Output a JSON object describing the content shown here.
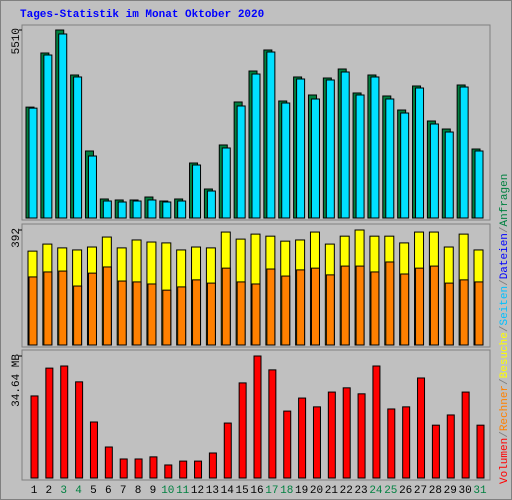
{
  "chart_data": [
    {
      "type": "bar",
      "title": "Tages-Statistik im Monat Oktober 2020",
      "ylim": [
        0,
        5510
      ],
      "yticks": [
        5510
      ],
      "legend_separator": "/",
      "legend": [
        {
          "label": "Volumen",
          "color": "#ff0000"
        },
        {
          "label": "Rechner",
          "color": "#ff8000"
        },
        {
          "label": "Besuche",
          "color": "#ffff00"
        },
        {
          "label": "Seiten",
          "color": "#00c0ff"
        },
        {
          "label": "Dateien",
          "color": "#0000ff"
        },
        {
          "label": "Anfragen",
          "color": "#008040"
        }
      ],
      "series": [
        {
          "color": "#008040",
          "values": [
            3250,
            4836,
            5510,
            4191,
            1964,
            557,
            528,
            528,
            615,
            498,
            557,
            1612,
            850,
            2140,
            3400,
            4308,
            4924,
            3429,
            4133,
            3605,
            4103,
            4367,
            3664,
            4191,
            3576,
            3165,
            3869,
            2843,
            2608,
            3898,
            2022
          ]
        },
        {
          "color": "#00e0ff",
          "values": [
            3220,
            4777,
            5393,
            4133,
            1817,
            498,
            469,
            498,
            528,
            469,
            498,
            1553,
            791,
            2052,
            3283,
            4220,
            4865,
            3370,
            4074,
            3488,
            4045,
            4279,
            3605,
            4133,
            3488,
            3077,
            3810,
            2755,
            2520,
            3839,
            1964
          ]
        }
      ]
    },
    {
      "type": "bar",
      "ylim": [
        0,
        392
      ],
      "yticks": [
        392
      ],
      "series": [
        {
          "color": "#ffff00",
          "values": [
            320,
            344,
            331,
            324,
            334,
            368,
            331,
            358,
            351,
            348,
            324,
            334,
            331,
            385,
            361,
            378,
            371,
            354,
            358,
            385,
            344,
            371,
            392,
            371,
            371,
            348,
            385,
            385,
            334,
            378,
            324
          ]
        },
        {
          "color": "#ff8000",
          "values": [
            232,
            249,
            252,
            201,
            245,
            266,
            218,
            215,
            208,
            187,
            198,
            222,
            211,
            262,
            215,
            208,
            259,
            235,
            256,
            262,
            239,
            269,
            269,
            249,
            283,
            242,
            262,
            269,
            211,
            222,
            215
          ]
        }
      ]
    },
    {
      "type": "bar",
      "ylim": [
        0,
        34.64
      ],
      "yticks": [
        {
          "value": 34.64,
          "label": "34.64 MB"
        }
      ],
      "categories": [
        "1",
        "2",
        "3",
        "4",
        "5",
        "6",
        "7",
        "8",
        "9",
        "10",
        "11",
        "12",
        "13",
        "14",
        "15",
        "16",
        "17",
        "18",
        "19",
        "20",
        "21",
        "22",
        "23",
        "24",
        "25",
        "26",
        "27",
        "28",
        "29",
        "30",
        "31"
      ],
      "label_colors": [
        "#000000",
        "#000000",
        "#008040",
        "#008040",
        "#000000",
        "#000000",
        "#000000",
        "#000000",
        "#000000",
        "#008040",
        "#008040",
        "#000000",
        "#000000",
        "#000000",
        "#000000",
        "#000000",
        "#008040",
        "#008040",
        "#000000",
        "#000000",
        "#000000",
        "#000000",
        "#000000",
        "#008040",
        "#008040",
        "#000000",
        "#000000",
        "#000000",
        "#000000",
        "#000000",
        "#008040"
      ],
      "series": [
        {
          "color": "#ff0000",
          "values": [
            23.3,
            31.2,
            31.8,
            27.3,
            15.9,
            8.8,
            5.4,
            5.4,
            6.0,
            3.7,
            4.8,
            4.8,
            7.1,
            15.6,
            27.0,
            34.64,
            30.7,
            19.0,
            22.7,
            20.2,
            24.4,
            25.6,
            23.9,
            31.8,
            19.6,
            20.2,
            28.4,
            15.0,
            17.9,
            24.4,
            15.0
          ]
        }
      ]
    }
  ]
}
